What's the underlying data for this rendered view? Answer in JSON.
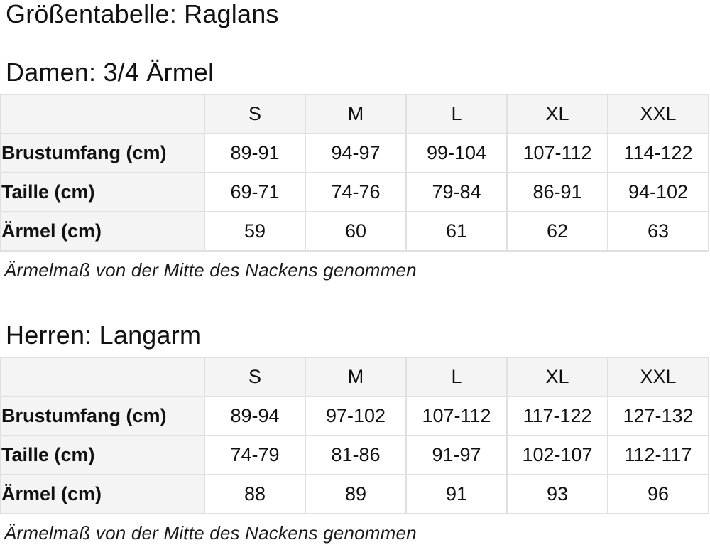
{
  "page_title": "Größentabelle: Raglans",
  "colors": {
    "header_bg": "#f4f4f4",
    "border": "#e0e0e0",
    "outer_border": "#d9d9d9",
    "text": "#111111"
  },
  "sections": [
    {
      "heading": "Damen: 3/4 Ärmel",
      "note": "Ärmelmaß von der Mitte des Nackens genommen",
      "table": {
        "corner": "",
        "size_headers": [
          "S",
          "M",
          "L",
          "XL",
          "XXL"
        ],
        "rows": [
          {
            "label": "Brustumfang (cm)",
            "values": [
              "89-91",
              "94-97",
              "99-104",
              "107-112",
              "114-122"
            ]
          },
          {
            "label": "Taille (cm)",
            "values": [
              "69-71",
              "74-76",
              "79-84",
              "86-91",
              "94-102"
            ]
          },
          {
            "label": "Ärmel (cm)",
            "values": [
              "59",
              "60",
              "61",
              "62",
              "63"
            ]
          }
        ]
      }
    },
    {
      "heading": "Herren: Langarm",
      "note": "Ärmelmaß von der Mitte des Nackens genommen",
      "table": {
        "corner": "",
        "size_headers": [
          "S",
          "M",
          "L",
          "XL",
          "XXL"
        ],
        "rows": [
          {
            "label": "Brustumfang (cm)",
            "values": [
              "89-94",
              "97-102",
              "107-112",
              "117-122",
              "127-132"
            ]
          },
          {
            "label": "Taille (cm)",
            "values": [
              "74-79",
              "81-86",
              "91-97",
              "102-107",
              "112-117"
            ]
          },
          {
            "label": "Ärmel (cm)",
            "values": [
              "88",
              "89",
              "91",
              "93",
              "96"
            ]
          }
        ]
      }
    }
  ]
}
